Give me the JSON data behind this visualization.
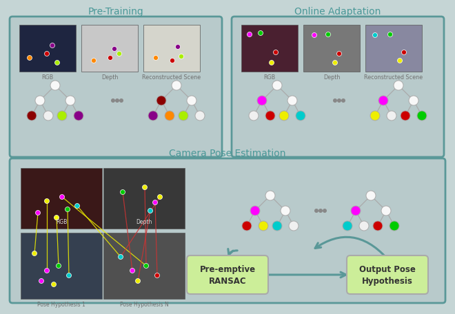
{
  "bg_color": "#c5d5d5",
  "panel_bg": "#b8cacb",
  "panel_border": "#5a9898",
  "title_color": "#4a9898",
  "text_color": "#707070",
  "green_box_color": "#ccee99",
  "arrow_color": "#5a9898",
  "tree_edge_color": "#aaaaaa",
  "tree_node_color": "#f8f8f8",
  "dot_color": "#888888",
  "pre_training_title": "Pre-Training",
  "online_adaptation_title": "Online Adaptation",
  "camera_pose_title": "Camera Pose Estimation",
  "ransac_label": "Pre-emptive\nRANSAC",
  "output_label": "Output Pose\nHypothesis",
  "pt_img_labels": [
    "RGB",
    "Depth",
    "Reconstructed Scene"
  ],
  "oa_img_labels": [
    "RGB",
    "Depth",
    "Reconstructed Scene"
  ],
  "bp_img_labels": [
    "RGB",
    "Depth",
    "Pose Hypothesis 1",
    "Pose Hypothesis N"
  ]
}
